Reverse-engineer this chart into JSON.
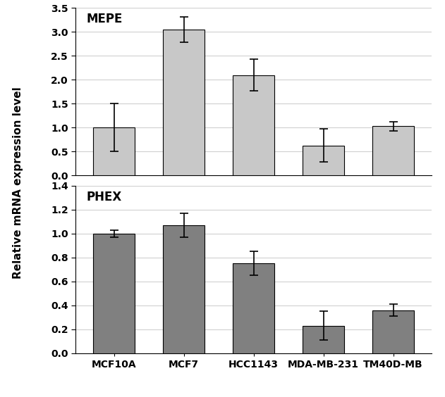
{
  "categories": [
    "MCF10A",
    "MCF7",
    "HCC1143",
    "MDA-MB-231",
    "TM40D-MB"
  ],
  "mepe": {
    "values": [
      1.0,
      3.05,
      2.1,
      0.63,
      1.03
    ],
    "errors": [
      0.5,
      0.27,
      0.33,
      0.35,
      0.1
    ],
    "ylim": [
      0,
      3.5
    ],
    "yticks": [
      0,
      0.5,
      1.0,
      1.5,
      2.0,
      2.5,
      3.0,
      3.5
    ],
    "label": "MEPE",
    "bar_color": "#c8c8c8",
    "edge_color": "#000000"
  },
  "phex": {
    "values": [
      1.0,
      1.07,
      0.75,
      0.23,
      0.36
    ],
    "errors": [
      0.03,
      0.1,
      0.1,
      0.12,
      0.05
    ],
    "ylim": [
      0,
      1.4
    ],
    "yticks": [
      0,
      0.2,
      0.4,
      0.6,
      0.8,
      1.0,
      1.2,
      1.4
    ],
    "label": "PHEX",
    "bar_color": "#808080",
    "edge_color": "#000000"
  },
  "ylabel": "Relative mRNA expression level",
  "background_color": "#ffffff",
  "grid_color": "#d0d0d0",
  "label_fontsize": 11,
  "tick_fontsize": 10,
  "title_fontsize": 12
}
